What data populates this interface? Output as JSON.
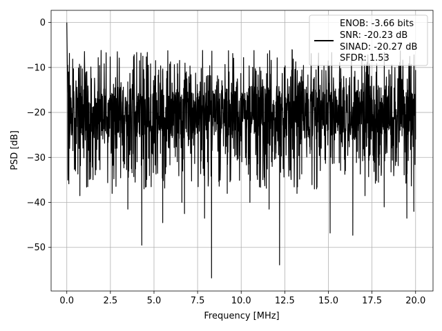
{
  "chart_data": {
    "type": "line",
    "xlabel": "Frequency [MHz]",
    "ylabel": "PSD [dB]",
    "xlim": [
      -0.9,
      21.0
    ],
    "ylim": [
      -59.7,
      2.7
    ],
    "x_ticks": [
      0.0,
      2.5,
      5.0,
      7.5,
      10.0,
      12.5,
      15.0,
      17.5,
      20.0
    ],
    "x_tick_labels": [
      "0.0",
      "2.5",
      "5.0",
      "7.5",
      "10.0",
      "12.5",
      "15.0",
      "17.5",
      "20.0"
    ],
    "y_ticks": [
      0,
      -10,
      -20,
      -30,
      -40,
      -50
    ],
    "y_tick_labels": [
      "0",
      "−10",
      "−20",
      "−30",
      "−40",
      "−50"
    ],
    "grid": true,
    "legend_position": "top-right",
    "legend_lines": [
      "ENOB: -3.66 bits",
      "SNR: -20.23 dB",
      "SINAD: -20.27 dB",
      "SFDR: 1.53"
    ],
    "line_color": "#000000",
    "noise_floor_center": -20,
    "noise_band": [
      -31,
      -9
    ],
    "series": [
      {
        "x": [
          0.0,
          0.02,
          0.05,
          0.1,
          0.2,
          0.35,
          0.5,
          0.7,
          0.75,
          1.2,
          2.6,
          3.5,
          4.3,
          5.5,
          6.6,
          6.75,
          7.9,
          8.3,
          9.2,
          10.5,
          11.6,
          12.2,
          13.2,
          14.2,
          15.1,
          16.4,
          17.1,
          18.2,
          19.5,
          19.9,
          20.0
        ],
        "y": [
          0.0,
          -6.5,
          -9.5,
          -11.0,
          -14.0,
          -28.5,
          -33.0,
          -28.0,
          -38.5,
          -36.5,
          -38.0,
          -41.5,
          -49.5,
          -44.5,
          -40.0,
          -42.5,
          -43.5,
          -56.8,
          -38.0,
          -40.0,
          -41.5,
          -53.9,
          -38.0,
          -37.0,
          -46.8,
          -47.3,
          -38.5,
          -41.0,
          -43.5,
          -42.0,
          -26.0
        ]
      }
    ]
  }
}
